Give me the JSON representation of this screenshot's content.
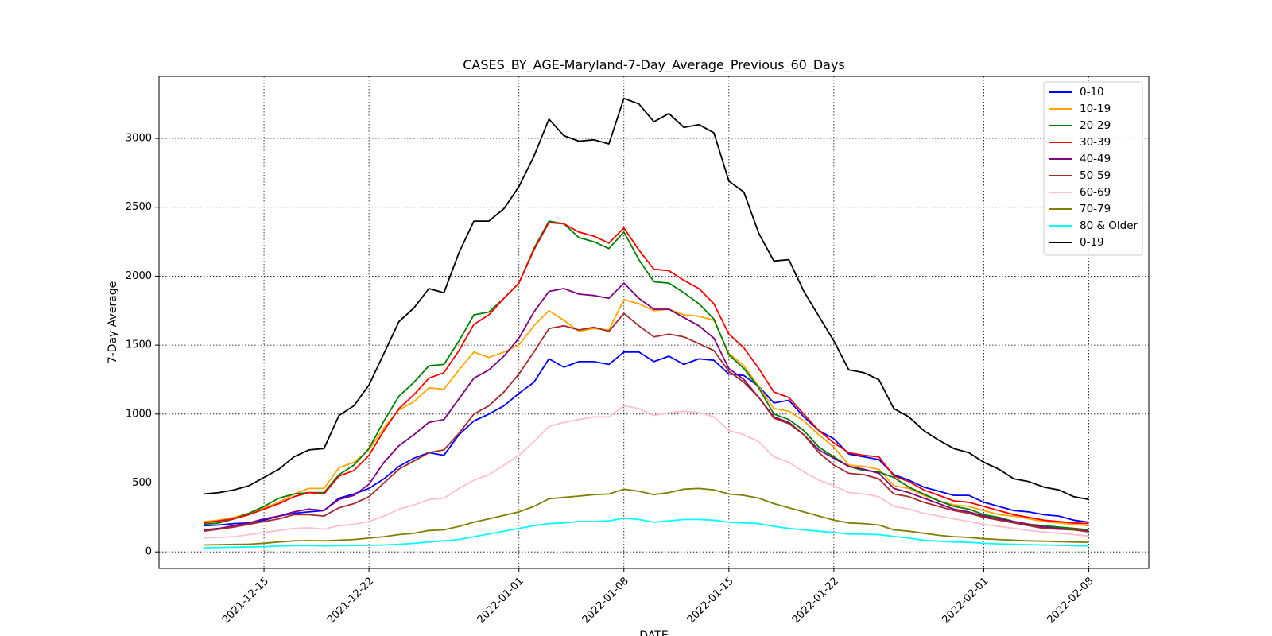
{
  "chart_data": {
    "type": "line",
    "title": "CASES_BY_AGE-Maryland-7-Day_Average_Previous_60_Days",
    "xlabel": "DATE",
    "ylabel": "7-Day Average",
    "x_start": "2021-12-11",
    "x_step_days": 1,
    "xlim": [
      "2021-12-08",
      "2022-02-12"
    ],
    "ylim": [
      -120,
      3450
    ],
    "xticks": [
      "2021-12-15",
      "2021-12-22",
      "2022-01-01",
      "2022-01-08",
      "2022-01-15",
      "2022-01-22",
      "2022-02-01",
      "2022-02-08"
    ],
    "yticks": [
      0,
      500,
      1000,
      1500,
      2000,
      2500,
      3000
    ],
    "grid": true,
    "legend_position": "top-right",
    "series": [
      {
        "name": "0-10",
        "color": "#0000ff",
        "values": [
          190,
          195,
          205,
          210,
          230,
          260,
          280,
          290,
          300,
          390,
          420,
          460,
          530,
          620,
          680,
          720,
          700,
          850,
          950,
          1000,
          1060,
          1150,
          1230,
          1400,
          1340,
          1380,
          1380,
          1360,
          1450,
          1450,
          1380,
          1420,
          1360,
          1400,
          1390,
          1290,
          1280,
          1200,
          1080,
          1100,
          980,
          880,
          820,
          710,
          690,
          670,
          560,
          520,
          470,
          440,
          410,
          410,
          360,
          330,
          300,
          290,
          270,
          260,
          230,
          215
        ]
      },
      {
        "name": "10-19",
        "color": "#ffa500",
        "values": [
          220,
          230,
          250,
          280,
          320,
          360,
          420,
          460,
          460,
          610,
          650,
          740,
          900,
          1030,
          1090,
          1190,
          1180,
          1320,
          1450,
          1410,
          1450,
          1500,
          1640,
          1750,
          1680,
          1600,
          1620,
          1610,
          1830,
          1800,
          1750,
          1760,
          1720,
          1710,
          1680,
          1440,
          1350,
          1200,
          1040,
          1020,
          950,
          850,
          760,
          630,
          620,
          600,
          480,
          460,
          410,
          370,
          340,
          330,
          300,
          270,
          260,
          240,
          220,
          210,
          200,
          190
        ]
      },
      {
        "name": "20-29",
        "color": "#008000",
        "values": [
          200,
          210,
          240,
          280,
          330,
          390,
          420,
          430,
          430,
          560,
          630,
          750,
          950,
          1130,
          1230,
          1350,
          1360,
          1530,
          1720,
          1740,
          1840,
          1950,
          2200,
          2400,
          2380,
          2280,
          2250,
          2200,
          2320,
          2120,
          1960,
          1950,
          1880,
          1800,
          1690,
          1430,
          1330,
          1190,
          1000,
          960,
          880,
          760,
          690,
          620,
          590,
          580,
          540,
          470,
          420,
          370,
          330,
          310,
          270,
          250,
          220,
          200,
          190,
          180,
          170,
          160
        ]
      },
      {
        "name": "30-39",
        "color": "#ff0000",
        "values": [
          210,
          225,
          240,
          270,
          310,
          350,
          400,
          430,
          420,
          550,
          590,
          700,
          880,
          1040,
          1140,
          1260,
          1300,
          1460,
          1650,
          1720,
          1840,
          1950,
          2190,
          2390,
          2380,
          2320,
          2290,
          2240,
          2350,
          2190,
          2050,
          2040,
          1970,
          1910,
          1800,
          1580,
          1480,
          1330,
          1160,
          1120,
          1000,
          880,
          790,
          720,
          700,
          690,
          550,
          510,
          450,
          410,
          370,
          360,
          330,
          300,
          270,
          250,
          230,
          220,
          210,
          205
        ]
      },
      {
        "name": "40-49",
        "color": "#800080",
        "values": [
          160,
          170,
          190,
          210,
          240,
          260,
          290,
          310,
          300,
          380,
          410,
          490,
          650,
          770,
          850,
          940,
          960,
          1110,
          1260,
          1320,
          1420,
          1550,
          1740,
          1890,
          1910,
          1870,
          1860,
          1840,
          1950,
          1840,
          1760,
          1760,
          1700,
          1640,
          1550,
          1330,
          1250,
          1120,
          980,
          940,
          850,
          740,
          680,
          620,
          600,
          570,
          460,
          430,
          390,
          350,
          310,
          290,
          260,
          240,
          220,
          200,
          180,
          170,
          160,
          150
        ]
      },
      {
        "name": "50-59",
        "color": "#a52a2a",
        "values": [
          150,
          165,
          180,
          200,
          220,
          240,
          270,
          270,
          260,
          320,
          350,
          400,
          500,
          600,
          660,
          720,
          740,
          860,
          1000,
          1060,
          1160,
          1290,
          1450,
          1620,
          1640,
          1610,
          1630,
          1600,
          1730,
          1640,
          1560,
          1580,
          1560,
          1510,
          1460,
          1310,
          1230,
          1120,
          970,
          930,
          850,
          720,
          630,
          570,
          560,
          530,
          420,
          400,
          360,
          330,
          300,
          280,
          250,
          230,
          210,
          190,
          170,
          165,
          160,
          145
        ]
      },
      {
        "name": "60-69",
        "color": "#ffc0cb",
        "values": [
          100,
          105,
          110,
          125,
          140,
          155,
          170,
          175,
          165,
          190,
          200,
          220,
          260,
          310,
          340,
          380,
          390,
          460,
          520,
          560,
          630,
          700,
          800,
          910,
          940,
          960,
          980,
          980,
          1060,
          1040,
          990,
          1010,
          1020,
          1010,
          980,
          880,
          850,
          800,
          690,
          650,
          580,
          520,
          480,
          430,
          420,
          400,
          330,
          310,
          280,
          260,
          240,
          220,
          200,
          185,
          170,
          155,
          145,
          135,
          125,
          115
        ]
      },
      {
        "name": "70-79",
        "color": "#808000",
        "values": [
          50,
          52,
          54,
          56,
          63,
          72,
          80,
          82,
          80,
          85,
          90,
          100,
          110,
          125,
          135,
          155,
          160,
          185,
          215,
          240,
          265,
          290,
          330,
          385,
          395,
          405,
          415,
          420,
          455,
          440,
          415,
          430,
          455,
          460,
          450,
          420,
          410,
          390,
          350,
          320,
          290,
          260,
          230,
          210,
          205,
          195,
          160,
          150,
          135,
          120,
          110,
          105,
          95,
          90,
          85,
          80,
          78,
          75,
          72,
          70
        ]
      },
      {
        "name": "80 & Older",
        "color": "#00ffff",
        "values": [
          30,
          32,
          34,
          36,
          38,
          42,
          45,
          46,
          44,
          45,
          46,
          48,
          50,
          55,
          62,
          72,
          80,
          90,
          110,
          130,
          150,
          170,
          190,
          205,
          210,
          220,
          220,
          225,
          245,
          235,
          215,
          225,
          235,
          235,
          230,
          215,
          210,
          205,
          185,
          170,
          160,
          150,
          140,
          130,
          128,
          125,
          112,
          100,
          85,
          78,
          72,
          70,
          62,
          58,
          55,
          52,
          50,
          48,
          45,
          42
        ]
      },
      {
        "name": "0-19",
        "color": "#000000",
        "values": [
          420,
          430,
          450,
          480,
          540,
          600,
          690,
          740,
          750,
          990,
          1060,
          1210,
          1440,
          1670,
          1770,
          1910,
          1880,
          2170,
          2400,
          2400,
          2490,
          2650,
          2870,
          3140,
          3020,
          2980,
          2990,
          2960,
          3290,
          3250,
          3120,
          3180,
          3080,
          3100,
          3040,
          2690,
          2610,
          2310,
          2110,
          2120,
          1890,
          1710,
          1530,
          1320,
          1300,
          1250,
          1040,
          980,
          880,
          810,
          750,
          720,
          650,
          600,
          530,
          510,
          470,
          450,
          400,
          380
        ]
      }
    ]
  }
}
